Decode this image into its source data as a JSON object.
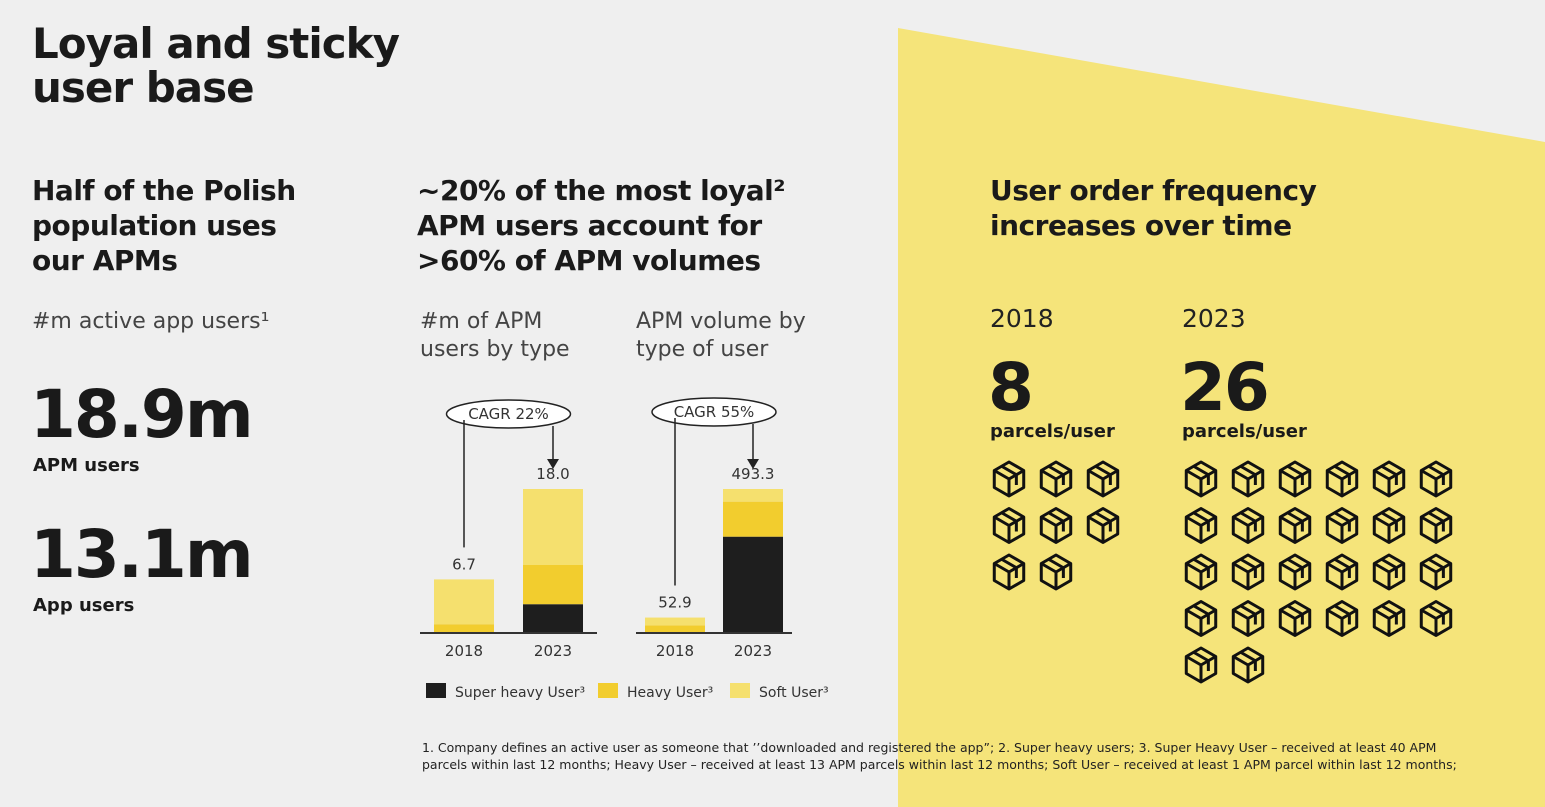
{
  "title": [
    "Loyal and sticky",
    "user base"
  ],
  "left": {
    "heading": [
      "Half of the Polish",
      "population uses",
      "our APMs"
    ],
    "subheading": "#m active app users¹",
    "stats": [
      {
        "value": "18.9m",
        "label": "APM users"
      },
      {
        "value": "13.1m",
        "label": "App users"
      }
    ]
  },
  "middle": {
    "heading": [
      "~20% of the most loyal²",
      "APM users account for",
      ">60% of APM volumes"
    ]
  },
  "chart_data": [
    {
      "type": "stacked_bar",
      "title": [
        "#m of APM",
        "users by type"
      ],
      "categories": [
        "2018",
        "2023"
      ],
      "series": [
        {
          "name": "Super heavy User³",
          "color": "#1e1e1e",
          "values": [
            0,
            3.6
          ]
        },
        {
          "name": "Heavy User³",
          "color": "#f2cd2e",
          "values": [
            1.1,
            4.9
          ]
        },
        {
          "name": "Soft User³",
          "color": "#f5e06e",
          "values": [
            5.6,
            9.5
          ]
        }
      ],
      "total_labels": [
        "6.7",
        "18.0"
      ],
      "annotation": "CAGR 22%"
    },
    {
      "type": "stacked_bar",
      "title": [
        "APM volume by",
        "type of user"
      ],
      "categories": [
        "2018",
        "2023"
      ],
      "series": [
        {
          "name": "Super heavy User³",
          "color": "#1e1e1e",
          "values": [
            0,
            330
          ]
        },
        {
          "name": "Heavy User³",
          "color": "#f2cd2e",
          "values": [
            26,
            120
          ]
        },
        {
          "name": "Soft User³",
          "color": "#f5e06e",
          "values": [
            26.9,
            43.3
          ]
        }
      ],
      "total_labels": [
        "52.9",
        "493.3"
      ],
      "annotation": "CAGR 55%"
    }
  ],
  "right": {
    "heading": [
      "User order frequency",
      "increases over time"
    ],
    "items": [
      {
        "year": "2018",
        "value": 8,
        "unit": "parcels/user"
      },
      {
        "year": "2023",
        "value": 26,
        "unit": "parcels/user"
      }
    ]
  },
  "footnote": [
    "1. Company defines an active user as someone that ’’downloaded and registered the app”; 2. Super heavy users; 3. Super Heavy User – received at least 40 APM",
    "parcels within last 12 months; Heavy User – received at least 13 APM parcels within last 12 months; Soft User – received at least 1 APM parcel within last 12 months;"
  ]
}
